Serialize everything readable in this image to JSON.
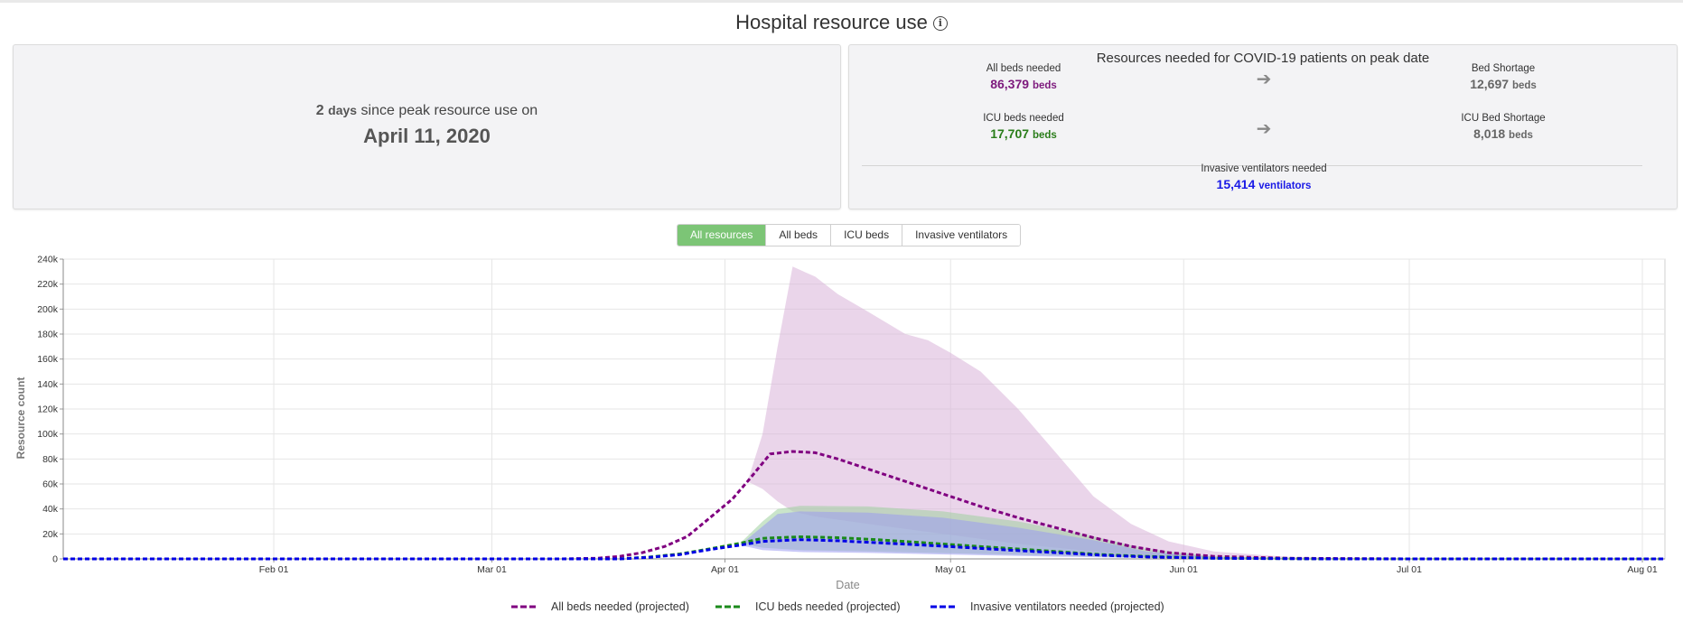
{
  "header": {
    "title": "Hospital resource use",
    "info_icon": "info-icon"
  },
  "peak_panel": {
    "days_value": "2",
    "days_unit": "days",
    "since_text": "since peak resource use on",
    "peak_date": "April 11, 2020"
  },
  "resources_panel": {
    "title": "Resources needed for COVID-19 patients on peak date",
    "all_beds": {
      "label": "All beds needed",
      "value": "86,379",
      "unit": "beds",
      "color": "#7d1a7d"
    },
    "bed_shortage": {
      "label": "Bed Shortage",
      "value": "12,697",
      "unit": "beds",
      "color": "#666666"
    },
    "icu_beds": {
      "label": "ICU beds needed",
      "value": "17,707",
      "unit": "beds",
      "color": "#2a7d1a"
    },
    "icu_shortage": {
      "label": "ICU Bed Shortage",
      "value": "8,018",
      "unit": "beds",
      "color": "#666666"
    },
    "ventilators": {
      "label": "Invasive ventilators needed",
      "value": "15,414",
      "unit": "ventilators",
      "color": "#1a1ae6"
    },
    "arrow_icon": "arrow-right-icon"
  },
  "tabs": [
    {
      "label": "All resources",
      "active": true
    },
    {
      "label": "All beds",
      "active": false
    },
    {
      "label": "ICU beds",
      "active": false
    },
    {
      "label": "Invasive ventilators",
      "active": false
    }
  ],
  "chart_data": {
    "type": "line",
    "xlabel": "Date",
    "ylabel": "Resource count",
    "x_domain": [
      "2020-01-04",
      "2020-08-04"
    ],
    "ylim": [
      0,
      240000
    ],
    "y_ticks": [
      0,
      20000,
      40000,
      60000,
      80000,
      100000,
      120000,
      140000,
      160000,
      180000,
      200000,
      220000,
      240000
    ],
    "y_tick_labels": [
      "0",
      "20k",
      "40k",
      "60k",
      "80k",
      "100k",
      "120k",
      "140k",
      "160k",
      "180k",
      "200k",
      "220k",
      "240k"
    ],
    "x_ticks": [
      {
        "date": "2020-02-01",
        "label": "Feb 01"
      },
      {
        "date": "2020-03-01",
        "label": "Mar 01"
      },
      {
        "date": "2020-04-01",
        "label": "Apr 01"
      },
      {
        "date": "2020-05-01",
        "label": "May 01"
      },
      {
        "date": "2020-06-01",
        "label": "Jun 01"
      },
      {
        "date": "2020-07-01",
        "label": "Jul 01"
      },
      {
        "date": "2020-08-01",
        "label": "Aug 01"
      }
    ],
    "grid": true,
    "legend_position": "bottom",
    "series": [
      {
        "name": "All beds needed (projected)",
        "color": "#800080",
        "band_color": "#d9b3d9",
        "points": [
          [
            "2020-01-04",
            0
          ],
          [
            "2020-03-10",
            0
          ],
          [
            "2020-03-15",
            500
          ],
          [
            "2020-03-18",
            2000
          ],
          [
            "2020-03-21",
            5000
          ],
          [
            "2020-03-24",
            10000
          ],
          [
            "2020-03-27",
            18000
          ],
          [
            "2020-03-30",
            33000
          ],
          [
            "2020-04-02",
            48000
          ],
          [
            "2020-04-04",
            62000
          ],
          [
            "2020-04-07",
            84000
          ],
          [
            "2020-04-10",
            86000
          ],
          [
            "2020-04-13",
            85000
          ],
          [
            "2020-04-16",
            80000
          ],
          [
            "2020-04-20",
            72000
          ],
          [
            "2020-04-25",
            62000
          ],
          [
            "2020-04-30",
            52000
          ],
          [
            "2020-05-05",
            42000
          ],
          [
            "2020-05-10",
            33000
          ],
          [
            "2020-05-15",
            25000
          ],
          [
            "2020-05-20",
            17000
          ],
          [
            "2020-05-25",
            10000
          ],
          [
            "2020-05-30",
            5000
          ],
          [
            "2020-06-05",
            2000
          ],
          [
            "2020-06-15",
            500
          ],
          [
            "2020-07-01",
            0
          ],
          [
            "2020-08-04",
            0
          ]
        ],
        "upper": [
          [
            "2020-04-04",
            62000
          ],
          [
            "2020-04-06",
            100000
          ],
          [
            "2020-04-08",
            170000
          ],
          [
            "2020-04-10",
            234000
          ],
          [
            "2020-04-13",
            226000
          ],
          [
            "2020-04-16",
            212000
          ],
          [
            "2020-04-20",
            198000
          ],
          [
            "2020-04-25",
            180000
          ],
          [
            "2020-04-28",
            175000
          ],
          [
            "2020-05-01",
            165000
          ],
          [
            "2020-05-05",
            150000
          ],
          [
            "2020-05-10",
            120000
          ],
          [
            "2020-05-15",
            85000
          ],
          [
            "2020-05-20",
            50000
          ],
          [
            "2020-05-25",
            28000
          ],
          [
            "2020-05-30",
            14000
          ],
          [
            "2020-06-05",
            6000
          ],
          [
            "2020-06-15",
            1500
          ],
          [
            "2020-07-01",
            0
          ]
        ],
        "lower": [
          [
            "2020-04-04",
            62000
          ],
          [
            "2020-04-06",
            56000
          ],
          [
            "2020-04-08",
            46000
          ],
          [
            "2020-04-10",
            38000
          ],
          [
            "2020-04-13",
            34000
          ],
          [
            "2020-04-20",
            28000
          ],
          [
            "2020-04-30",
            20000
          ],
          [
            "2020-05-10",
            12000
          ],
          [
            "2020-05-20",
            6000
          ],
          [
            "2020-06-01",
            1500
          ],
          [
            "2020-06-15",
            300
          ],
          [
            "2020-07-01",
            0
          ]
        ]
      },
      {
        "name": "ICU beds needed (projected)",
        "color": "#1a8a1a",
        "band_color": "#9fcf9f",
        "points": [
          [
            "2020-01-04",
            0
          ],
          [
            "2020-03-18",
            0
          ],
          [
            "2020-03-22",
            1500
          ],
          [
            "2020-03-26",
            4000
          ],
          [
            "2020-03-30",
            8000
          ],
          [
            "2020-04-03",
            12500
          ],
          [
            "2020-04-06",
            16500
          ],
          [
            "2020-04-11",
            17700
          ],
          [
            "2020-04-16",
            17000
          ],
          [
            "2020-04-21",
            15500
          ],
          [
            "2020-04-26",
            13500
          ],
          [
            "2020-05-01",
            11500
          ],
          [
            "2020-05-06",
            9500
          ],
          [
            "2020-05-11",
            7500
          ],
          [
            "2020-05-16",
            5500
          ],
          [
            "2020-05-21",
            3500
          ],
          [
            "2020-05-27",
            2000
          ],
          [
            "2020-06-05",
            600
          ],
          [
            "2020-06-20",
            0
          ],
          [
            "2020-08-04",
            0
          ]
        ],
        "upper": [
          [
            "2020-04-03",
            12500
          ],
          [
            "2020-04-06",
            30000
          ],
          [
            "2020-04-08",
            40000
          ],
          [
            "2020-04-11",
            42500
          ],
          [
            "2020-04-20",
            42000
          ],
          [
            "2020-04-30",
            38000
          ],
          [
            "2020-05-10",
            30000
          ],
          [
            "2020-05-20",
            18000
          ],
          [
            "2020-05-27",
            8000
          ],
          [
            "2020-06-05",
            2000
          ],
          [
            "2020-06-20",
            0
          ]
        ],
        "lower": [
          [
            "2020-04-03",
            12500
          ],
          [
            "2020-04-06",
            9000
          ],
          [
            "2020-04-11",
            7000
          ],
          [
            "2020-04-20",
            6000
          ],
          [
            "2020-05-01",
            4500
          ],
          [
            "2020-05-15",
            2500
          ],
          [
            "2020-05-27",
            1000
          ],
          [
            "2020-06-20",
            0
          ]
        ]
      },
      {
        "name": "Invasive ventilators needed (projected)",
        "color": "#0000e6",
        "band_color": "#9a9af0",
        "points": [
          [
            "2020-01-04",
            0
          ],
          [
            "2020-03-18",
            0
          ],
          [
            "2020-03-22",
            1200
          ],
          [
            "2020-03-26",
            3500
          ],
          [
            "2020-03-30",
            7500
          ],
          [
            "2020-04-03",
            11000
          ],
          [
            "2020-04-06",
            14000
          ],
          [
            "2020-04-11",
            15400
          ],
          [
            "2020-04-16",
            14500
          ],
          [
            "2020-04-21",
            13000
          ],
          [
            "2020-04-26",
            11500
          ],
          [
            "2020-05-01",
            9800
          ],
          [
            "2020-05-06",
            8000
          ],
          [
            "2020-05-11",
            6300
          ],
          [
            "2020-05-16",
            4700
          ],
          [
            "2020-05-21",
            3000
          ],
          [
            "2020-05-27",
            1600
          ],
          [
            "2020-06-05",
            500
          ],
          [
            "2020-06-20",
            0
          ],
          [
            "2020-08-04",
            0
          ]
        ],
        "upper": [
          [
            "2020-04-03",
            11000
          ],
          [
            "2020-04-06",
            26000
          ],
          [
            "2020-04-08",
            36000
          ],
          [
            "2020-04-11",
            38000
          ],
          [
            "2020-04-20",
            37000
          ],
          [
            "2020-04-30",
            33000
          ],
          [
            "2020-05-10",
            25000
          ],
          [
            "2020-05-20",
            15000
          ],
          [
            "2020-05-27",
            6000
          ],
          [
            "2020-06-05",
            1500
          ],
          [
            "2020-06-20",
            0
          ]
        ],
        "lower": [
          [
            "2020-04-03",
            11000
          ],
          [
            "2020-04-06",
            7000
          ],
          [
            "2020-04-11",
            5500
          ],
          [
            "2020-04-20",
            4800
          ],
          [
            "2020-05-01",
            3500
          ],
          [
            "2020-05-15",
            1800
          ],
          [
            "2020-05-27",
            700
          ],
          [
            "2020-06-20",
            0
          ]
        ]
      }
    ]
  }
}
